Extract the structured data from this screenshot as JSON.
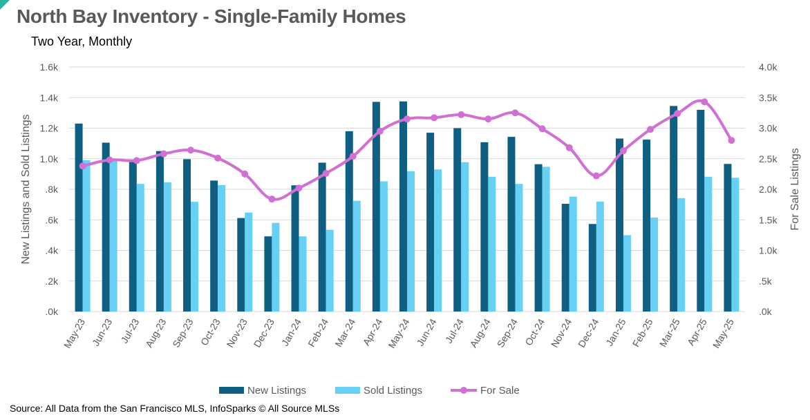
{
  "header": {
    "title": "North Bay Inventory - Single-Family Homes",
    "subtitle": "Two Year, Monthly"
  },
  "footer": {
    "source": "Source: All Data from the San Francisco MLS, InfoSparks © All Source MLSs"
  },
  "chart_data": {
    "type": "bar",
    "title": "North Bay Inventory - Single-Family Homes",
    "subtitle": "Two Year, Monthly",
    "categories": [
      "May-23",
      "Jun-23",
      "Jul-23",
      "Aug-23",
      "Sep-23",
      "Oct-23",
      "Nov-23",
      "Dec-23",
      "Jan-24",
      "Feb-24",
      "Mar-24",
      "Apr-24",
      "May-24",
      "Jun-24",
      "Jul-24",
      "Aug-24",
      "Sep-24",
      "Oct-24",
      "Nov-24",
      "Dec-24",
      "Jan-25",
      "Feb-25",
      "Mar-25",
      "Apr-25",
      "May-25"
    ],
    "series": [
      {
        "name": "New Listings",
        "axis": "left",
        "render": "bar",
        "color": "#0e5f82",
        "values": [
          1230,
          1105,
          990,
          1050,
          997,
          857,
          612,
          492,
          826,
          974,
          1180,
          1372,
          1375,
          1170,
          1200,
          1108,
          1143,
          964,
          705,
          573,
          1132,
          1125,
          1345,
          1320,
          966
        ]
      },
      {
        "name": "Sold Listings",
        "axis": "left",
        "render": "bar",
        "color": "#66d0f5",
        "values": [
          990,
          1000,
          835,
          845,
          718,
          827,
          648,
          580,
          492,
          535,
          725,
          852,
          918,
          930,
          977,
          882,
          835,
          947,
          752,
          720,
          500,
          615,
          742,
          882,
          875
        ]
      },
      {
        "name": "For Sale",
        "axis": "right",
        "render": "line",
        "color": "#d16fd4",
        "values": [
          2380,
          2480,
          2470,
          2580,
          2640,
          2510,
          2250,
          1840,
          2020,
          2260,
          2540,
          2950,
          3150,
          3170,
          3220,
          3150,
          3250,
          2990,
          2680,
          2220,
          2630,
          2980,
          3240,
          3430,
          2800
        ]
      }
    ],
    "y_left": {
      "label": "New Listings and Sold Listings",
      "min": 0,
      "max": 1600,
      "ticks": [
        {
          "value": 0,
          "label": ".0k"
        },
        {
          "value": 200,
          "label": ".2k"
        },
        {
          "value": 400,
          "label": ".4k"
        },
        {
          "value": 600,
          "label": ".6k"
        },
        {
          "value": 800,
          "label": ".8k"
        },
        {
          "value": 1000,
          "label": "1.0k"
        },
        {
          "value": 1200,
          "label": "1.2k"
        },
        {
          "value": 1400,
          "label": "1.4k"
        },
        {
          "value": 1600,
          "label": "1.6k"
        }
      ]
    },
    "y_right": {
      "label": "For Sale Listings",
      "min": 0,
      "max": 4000,
      "ticks": [
        {
          "value": 0,
          "label": ".0k"
        },
        {
          "value": 500,
          "label": ".5k"
        },
        {
          "value": 1000,
          "label": "1.0k"
        },
        {
          "value": 1500,
          "label": "1.5k"
        },
        {
          "value": 2000,
          "label": "2.0k"
        },
        {
          "value": 2500,
          "label": "2.5k"
        },
        {
          "value": 3000,
          "label": "3.0k"
        },
        {
          "value": 3500,
          "label": "3.5k"
        },
        {
          "value": 4000,
          "label": "4.0k"
        }
      ]
    },
    "grid": true,
    "legend": "bottom-center",
    "colors": {
      "grid": "#d9d9d9",
      "axis_text": "#595959"
    }
  }
}
